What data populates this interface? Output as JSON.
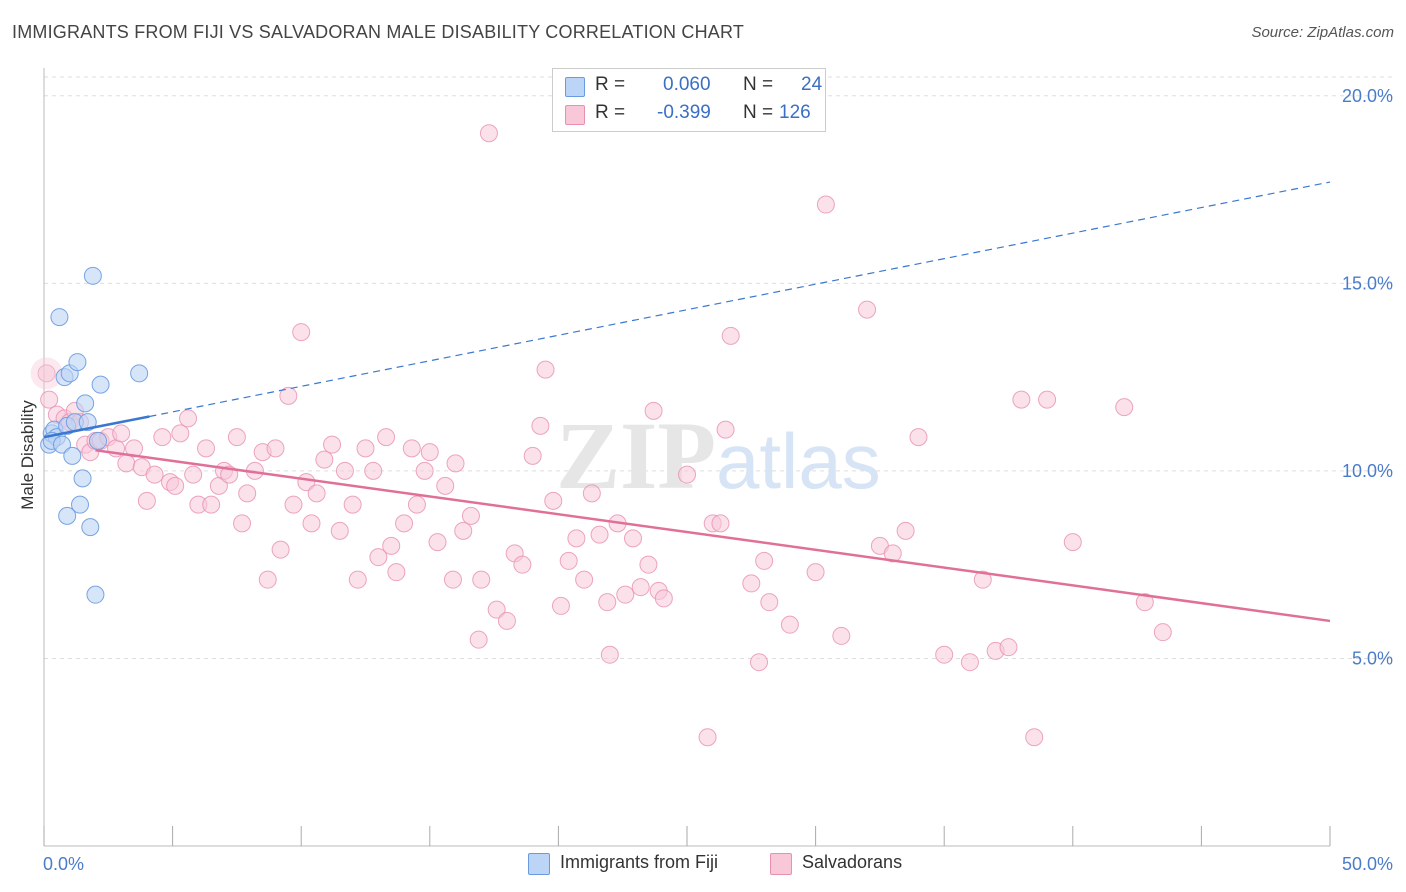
{
  "title": "IMMIGRANTS FROM FIJI VS SALVADORAN MALE DISABILITY CORRELATION CHART",
  "source": "Source: ZipAtlas.com",
  "watermark": {
    "zip": "ZIP",
    "atlas": "atlas"
  },
  "colors": {
    "fiji_fill": "#bcd4f5",
    "fiji_stroke": "#6a9be0",
    "fiji_line": "#3a78d0",
    "salv_fill": "#f8c8d8",
    "salv_stroke": "#e890b0",
    "salv_line": "#e07098",
    "grid": "#dddddd",
    "tick_text": "#4a7cc9"
  },
  "legend": {
    "rows": [
      {
        "r_label": "R =",
        "r_value": "0.060",
        "n_label": "N =",
        "n_value": "24"
      },
      {
        "r_label": "R =",
        "r_value": "-0.399",
        "n_label": "N =",
        "n_value": "126"
      }
    ]
  },
  "bottom_legend": [
    "Immigrants from Fiji",
    "Salvadorans"
  ],
  "chart_data": {
    "type": "scatter",
    "title": "IMMIGRANTS FROM FIJI VS SALVADORAN MALE DISABILITY CORRELATION CHART",
    "xlabel": "",
    "ylabel": "Male Disability",
    "xlim": [
      0,
      50
    ],
    "ylim": [
      0,
      20.5
    ],
    "x_tick_labels": [
      "0.0%",
      "50.0%"
    ],
    "y_ticks": [
      5,
      10,
      15,
      20
    ],
    "y_tick_labels": [
      "5.0%",
      "10.0%",
      "15.0%",
      "20.0%"
    ],
    "grid": true,
    "series": [
      {
        "name": "Immigrants from Fiji",
        "R": 0.06,
        "N": 24,
        "points": [
          [
            0.2,
            10.7
          ],
          [
            0.3,
            11.0
          ],
          [
            0.4,
            11.1
          ],
          [
            0.5,
            10.9
          ],
          [
            0.3,
            10.8
          ],
          [
            0.6,
            14.1
          ],
          [
            0.7,
            10.7
          ],
          [
            0.8,
            12.5
          ],
          [
            0.9,
            11.2
          ],
          [
            1.0,
            12.6
          ],
          [
            1.1,
            10.4
          ],
          [
            1.2,
            11.3
          ],
          [
            1.3,
            12.9
          ],
          [
            1.4,
            9.1
          ],
          [
            1.5,
            9.8
          ],
          [
            1.6,
            11.8
          ],
          [
            1.7,
            11.3
          ],
          [
            1.8,
            8.5
          ],
          [
            1.9,
            15.2
          ],
          [
            2.0,
            6.7
          ],
          [
            2.1,
            10.8
          ],
          [
            2.2,
            12.3
          ],
          [
            3.7,
            12.6
          ],
          [
            0.9,
            8.8
          ]
        ],
        "trend": {
          "x": [
            0,
            4.1
          ],
          "y": [
            10.9,
            11.45
          ]
        },
        "trend_extension": {
          "x": [
            4.1,
            50
          ],
          "y": [
            11.45,
            17.7
          ]
        }
      },
      {
        "name": "Salvadorans",
        "R": -0.399,
        "N": 126,
        "points": [
          [
            0.1,
            12.6
          ],
          [
            0.2,
            11.9
          ],
          [
            0.5,
            11.5
          ],
          [
            0.8,
            11.4
          ],
          [
            1.0,
            11.3
          ],
          [
            1.2,
            11.6
          ],
          [
            1.4,
            11.3
          ],
          [
            1.6,
            10.7
          ],
          [
            1.8,
            10.5
          ],
          [
            2.0,
            10.8
          ],
          [
            2.2,
            10.8
          ],
          [
            2.5,
            10.9
          ],
          [
            2.8,
            10.6
          ],
          [
            3.0,
            11.0
          ],
          [
            3.2,
            10.2
          ],
          [
            3.5,
            10.6
          ],
          [
            3.8,
            10.1
          ],
          [
            4.0,
            9.2
          ],
          [
            4.3,
            9.9
          ],
          [
            4.6,
            10.9
          ],
          [
            4.9,
            9.7
          ],
          [
            5.1,
            9.6
          ],
          [
            5.3,
            11.0
          ],
          [
            5.6,
            11.4
          ],
          [
            5.8,
            9.9
          ],
          [
            6.0,
            9.1
          ],
          [
            6.3,
            10.6
          ],
          [
            6.5,
            9.1
          ],
          [
            6.8,
            9.6
          ],
          [
            7.0,
            10.0
          ],
          [
            7.2,
            9.9
          ],
          [
            7.5,
            10.9
          ],
          [
            7.7,
            8.6
          ],
          [
            7.9,
            9.4
          ],
          [
            8.2,
            10.0
          ],
          [
            8.5,
            10.5
          ],
          [
            8.7,
            7.1
          ],
          [
            9.0,
            10.6
          ],
          [
            9.2,
            7.9
          ],
          [
            9.5,
            12.0
          ],
          [
            9.7,
            9.1
          ],
          [
            10.0,
            13.7
          ],
          [
            10.2,
            9.7
          ],
          [
            10.4,
            8.6
          ],
          [
            10.6,
            9.4
          ],
          [
            10.9,
            10.3
          ],
          [
            11.2,
            10.7
          ],
          [
            11.5,
            8.4
          ],
          [
            11.7,
            10.0
          ],
          [
            12.0,
            9.1
          ],
          [
            12.2,
            7.1
          ],
          [
            12.5,
            10.6
          ],
          [
            12.8,
            10.0
          ],
          [
            13.0,
            7.7
          ],
          [
            13.3,
            10.9
          ],
          [
            13.5,
            8.0
          ],
          [
            13.7,
            7.3
          ],
          [
            14.0,
            8.6
          ],
          [
            14.3,
            10.6
          ],
          [
            14.5,
            9.1
          ],
          [
            14.8,
            10.0
          ],
          [
            15.0,
            10.5
          ],
          [
            15.3,
            8.1
          ],
          [
            15.6,
            9.6
          ],
          [
            15.9,
            7.1
          ],
          [
            16.0,
            10.2
          ],
          [
            16.3,
            8.4
          ],
          [
            16.6,
            8.8
          ],
          [
            16.9,
            5.5
          ],
          [
            17.0,
            7.1
          ],
          [
            17.3,
            19.0
          ],
          [
            17.6,
            6.3
          ],
          [
            18.0,
            6.0
          ],
          [
            18.3,
            7.8
          ],
          [
            18.6,
            7.5
          ],
          [
            19.0,
            10.4
          ],
          [
            19.3,
            11.2
          ],
          [
            19.5,
            12.7
          ],
          [
            19.8,
            9.2
          ],
          [
            20.1,
            6.4
          ],
          [
            20.4,
            7.6
          ],
          [
            20.7,
            8.2
          ],
          [
            21.0,
            7.1
          ],
          [
            21.3,
            9.4
          ],
          [
            21.6,
            8.3
          ],
          [
            21.9,
            6.5
          ],
          [
            22.0,
            5.1
          ],
          [
            22.3,
            8.6
          ],
          [
            22.6,
            6.7
          ],
          [
            22.9,
            8.2
          ],
          [
            23.2,
            6.9
          ],
          [
            23.5,
            7.5
          ],
          [
            23.7,
            11.6
          ],
          [
            23.9,
            6.8
          ],
          [
            24.1,
            6.6
          ],
          [
            25.0,
            9.9
          ],
          [
            25.8,
            2.9
          ],
          [
            26.0,
            8.6
          ],
          [
            26.3,
            8.6
          ],
          [
            26.5,
            11.1
          ],
          [
            26.7,
            13.6
          ],
          [
            27.5,
            7.0
          ],
          [
            27.8,
            4.9
          ],
          [
            28.0,
            7.6
          ],
          [
            28.2,
            6.5
          ],
          [
            29.0,
            5.9
          ],
          [
            30.0,
            7.3
          ],
          [
            30.4,
            17.1
          ],
          [
            31.0,
            5.6
          ],
          [
            32.0,
            14.3
          ],
          [
            32.5,
            8.0
          ],
          [
            33.0,
            7.8
          ],
          [
            33.5,
            8.4
          ],
          [
            34.0,
            10.9
          ],
          [
            35.0,
            5.1
          ],
          [
            36.0,
            4.9
          ],
          [
            36.5,
            7.1
          ],
          [
            37.0,
            5.2
          ],
          [
            37.5,
            5.3
          ],
          [
            38.0,
            11.9
          ],
          [
            38.5,
            2.9
          ],
          [
            39.0,
            11.9
          ],
          [
            40.0,
            8.1
          ],
          [
            42.0,
            11.7
          ],
          [
            42.8,
            6.5
          ],
          [
            43.5,
            5.7
          ]
        ],
        "trend": {
          "x": [
            2.0,
            50
          ],
          "y": [
            10.55,
            6.0
          ]
        }
      }
    ]
  }
}
